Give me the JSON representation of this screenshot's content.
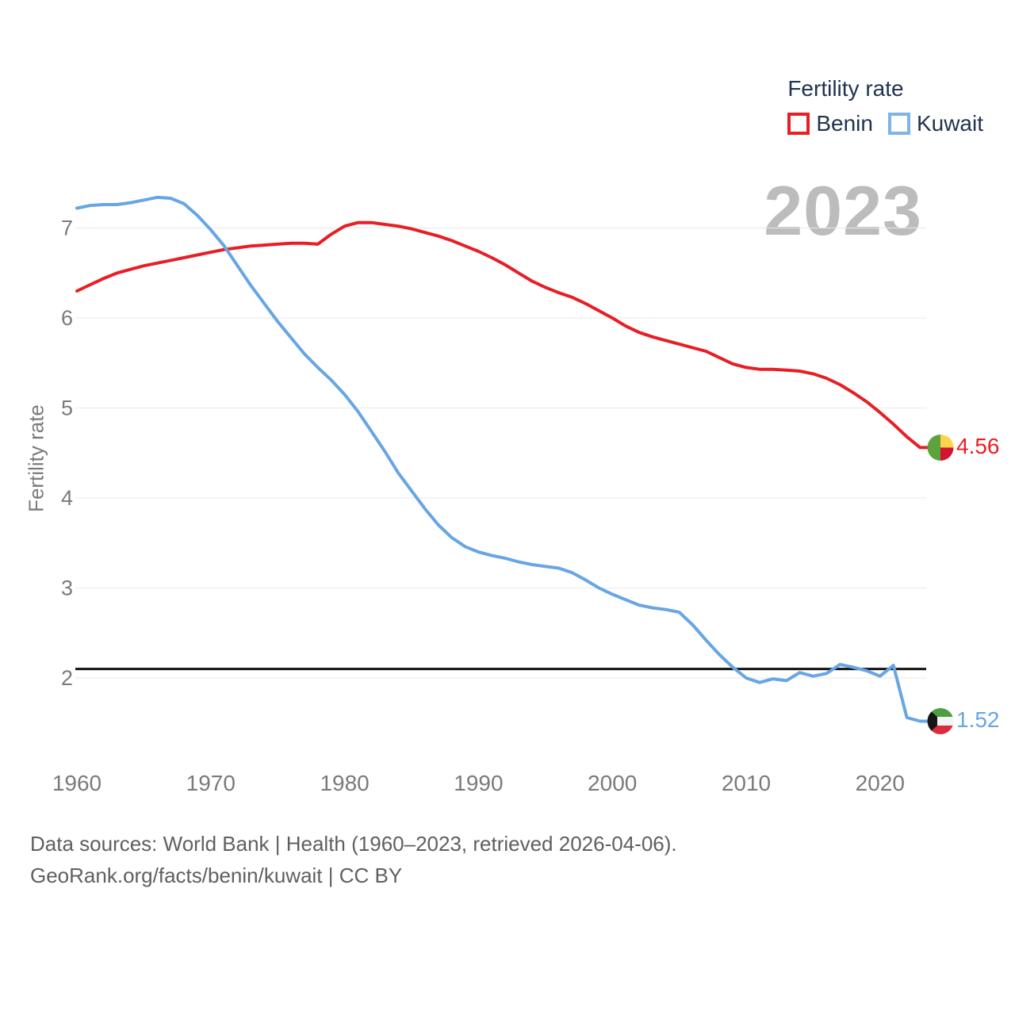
{
  "legend": {
    "title": "Fertility rate",
    "items": [
      {
        "label": "Benin",
        "color": "#e81e25"
      },
      {
        "label": "Kuwait",
        "color": "#7db4ea"
      }
    ]
  },
  "watermark": "2023",
  "y_axis": {
    "title": "Fertility rate",
    "ticks": [
      7,
      6,
      5,
      4,
      3,
      2
    ]
  },
  "x_axis": {
    "ticks": [
      1960,
      1970,
      1980,
      1990,
      2000,
      2010,
      2020
    ]
  },
  "reference_line": {
    "value": 2.1,
    "color": "#111111"
  },
  "footer": {
    "line1": "Data sources: World Bank | Health (1960–2023, retrieved 2026-04-06).",
    "line2": "GeoRank.org/facts/benin/kuwait | CC BY"
  },
  "chart_data": {
    "type": "line",
    "title": "Fertility rate",
    "xlabel": "",
    "ylabel": "Fertility rate",
    "xlim": [
      1960,
      2023
    ],
    "ylim": [
      1.4,
      7.5
    ],
    "grid": "horizontal",
    "legend_position": "top-right",
    "annotations": {
      "replacement_level_line": 2.1,
      "year_watermark": "2023"
    },
    "x": [
      1960,
      1961,
      1962,
      1963,
      1964,
      1965,
      1966,
      1967,
      1968,
      1969,
      1970,
      1971,
      1972,
      1973,
      1974,
      1975,
      1976,
      1977,
      1978,
      1979,
      1980,
      1981,
      1982,
      1983,
      1984,
      1985,
      1986,
      1987,
      1988,
      1989,
      1990,
      1991,
      1992,
      1993,
      1994,
      1995,
      1996,
      1997,
      1998,
      1999,
      2000,
      2001,
      2002,
      2003,
      2004,
      2005,
      2006,
      2007,
      2008,
      2009,
      2010,
      2011,
      2012,
      2013,
      2014,
      2015,
      2016,
      2017,
      2018,
      2019,
      2020,
      2021,
      2022,
      2023
    ],
    "series": [
      {
        "name": "Benin",
        "color": "#e81e25",
        "end_label": "4.56",
        "end_value": 4.56,
        "values": [
          6.3,
          6.37,
          6.44,
          6.5,
          6.54,
          6.58,
          6.61,
          6.64,
          6.67,
          6.7,
          6.73,
          6.76,
          6.78,
          6.8,
          6.81,
          6.82,
          6.83,
          6.83,
          6.82,
          6.93,
          7.02,
          7.06,
          7.06,
          7.04,
          7.02,
          6.99,
          6.95,
          6.91,
          6.86,
          6.8,
          6.74,
          6.67,
          6.59,
          6.5,
          6.41,
          6.34,
          6.28,
          6.23,
          6.16,
          6.08,
          6.0,
          5.91,
          5.84,
          5.79,
          5.75,
          5.71,
          5.67,
          5.63,
          5.56,
          5.49,
          5.45,
          5.43,
          5.43,
          5.42,
          5.41,
          5.38,
          5.33,
          5.26,
          5.17,
          5.07,
          4.95,
          4.82,
          4.68,
          4.56
        ]
      },
      {
        "name": "Kuwait",
        "color": "#67a5e5",
        "end_label": "1.52",
        "end_value": 1.52,
        "values": [
          7.22,
          7.25,
          7.26,
          7.26,
          7.28,
          7.31,
          7.34,
          7.33,
          7.27,
          7.14,
          6.98,
          6.8,
          6.58,
          6.36,
          6.16,
          5.96,
          5.78,
          5.6,
          5.45,
          5.31,
          5.15,
          4.96,
          4.74,
          4.52,
          4.28,
          4.08,
          3.88,
          3.7,
          3.56,
          3.46,
          3.4,
          3.36,
          3.33,
          3.29,
          3.26,
          3.24,
          3.22,
          3.17,
          3.09,
          3.0,
          2.93,
          2.87,
          2.81,
          2.78,
          2.76,
          2.73,
          2.59,
          2.42,
          2.26,
          2.12,
          2.0,
          1.95,
          1.99,
          1.97,
          2.06,
          2.02,
          2.05,
          2.15,
          2.12,
          2.08,
          2.02,
          2.14,
          1.56,
          1.52
        ]
      }
    ],
    "flag_colors": {
      "benin": {
        "green": "#5da33d",
        "yellow": "#fcd34b",
        "red": "#d31330"
      },
      "kuwait": {
        "green": "#4d9e44",
        "white": "#f4f4f4",
        "red": "#da2c3b",
        "black": "#161616"
      }
    }
  }
}
